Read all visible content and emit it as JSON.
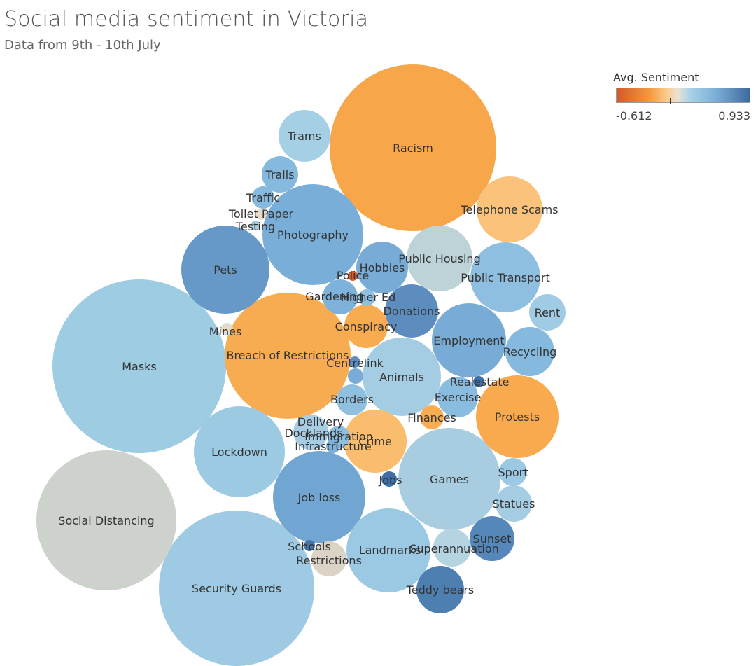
{
  "title": "Social media sentiment in Victoria",
  "subtitle": "Data from 9th - 10th July",
  "legend": {
    "title": "Avg. Sentiment",
    "min_label": "-0.612",
    "max_label": "0.933"
  },
  "colors": {
    "negative_strong": "#d4582a",
    "negative": "#f5a94b",
    "neutral_warm": "#ddd6c8",
    "neutral": "#c9d0cc",
    "positive_light": "#9ccbe3",
    "positive": "#7aaed6",
    "positive_strong": "#4779ac"
  },
  "chart_data": {
    "type": "packed-bubble",
    "title": "Social media sentiment in Victoria",
    "subtitle": "Data from 9th - 10th July",
    "color_legend": {
      "title": "Avg. Sentiment",
      "min": -0.612,
      "max": 0.933
    },
    "bubbles": [
      {
        "label": "Racism",
        "color": "#f8a64a"
      },
      {
        "label": "Masks",
        "color": "#9ecce3"
      },
      {
        "label": "Breach of Restrictions",
        "color": "#f8ac52"
      },
      {
        "label": "Security Guards",
        "color": "#9ecbe3"
      },
      {
        "label": "Social Distancing",
        "color": "#cdd2cd"
      },
      {
        "label": "Photography",
        "color": "#78aed8"
      },
      {
        "label": "Games",
        "color": "#a9cde0"
      },
      {
        "label": "Lockdown",
        "color": "#9dcae3"
      },
      {
        "label": "Landmarks",
        "color": "#9bc8e2"
      },
      {
        "label": "Job loss",
        "color": "#72a6d2"
      },
      {
        "label": "Pets",
        "color": "#6699c8"
      },
      {
        "label": "Animals",
        "color": "#a4cde3"
      },
      {
        "label": "Employment",
        "color": "#78acd6"
      },
      {
        "label": "Public Transport",
        "color": "#8fbfe0"
      },
      {
        "label": "Protests",
        "color": "#f9aa4e"
      },
      {
        "label": "Public Housing",
        "color": "#bdd3d8"
      },
      {
        "label": "Telephone Scams",
        "color": "#fac27a"
      },
      {
        "label": "Crime",
        "color": "#f9bd6d"
      },
      {
        "label": "Donations",
        "color": "#5d8dbe"
      },
      {
        "label": "Hobbies",
        "color": "#78acd6"
      },
      {
        "label": "Trams",
        "color": "#a4cfe4"
      },
      {
        "label": "Recycling",
        "color": "#86b9de"
      },
      {
        "label": "Sunset",
        "color": "#5587bb"
      },
      {
        "label": "Teddy bears",
        "color": "#4e7fb1"
      },
      {
        "label": "Conspiracy",
        "color": "#f8ab4f"
      },
      {
        "label": "Superannuation",
        "color": "#b5d4e2"
      },
      {
        "label": "Exercise",
        "color": "#89bcdf"
      },
      {
        "label": "Trails",
        "color": "#86b9de"
      },
      {
        "label": "Statues",
        "color": "#a4cce3"
      },
      {
        "label": "Borders",
        "color": "#8fc0e0"
      },
      {
        "label": "Gardening",
        "color": "#7eb2da"
      },
      {
        "label": "Rent",
        "color": "#a0cbe4"
      },
      {
        "label": "Restrictions",
        "color": "#dbd3c5"
      },
      {
        "label": "Delivery",
        "color": "#a6cde3"
      },
      {
        "label": "Finances",
        "color": "#f9ac50"
      },
      {
        "label": "Sport",
        "color": "#9bc9e3"
      },
      {
        "label": "Traffic",
        "color": "#86b9de"
      },
      {
        "label": "Immigration",
        "color": "#8dbedf"
      },
      {
        "label": "Higher Ed",
        "color": "#8fbfe0"
      },
      {
        "label": "Infrastructure",
        "color": "#7eb2da"
      },
      {
        "label": "Jobs",
        "color": "#3f6fa6"
      },
      {
        "label": "Centrelink",
        "color": "#5c8ec2"
      },
      {
        "label": "Realestate",
        "color": "#3f6fa6"
      },
      {
        "label": "Toilet Paper",
        "color": "#e6dccb"
      },
      {
        "label": "Testing",
        "color": "#a8cde3"
      },
      {
        "label": "Mines",
        "color": "#e3dccd"
      },
      {
        "label": "Police",
        "color": "#d65a2a"
      },
      {
        "label": "Docklands",
        "color": "#78acd6"
      },
      {
        "label": "Schools",
        "color": "#4576ab"
      }
    ]
  }
}
